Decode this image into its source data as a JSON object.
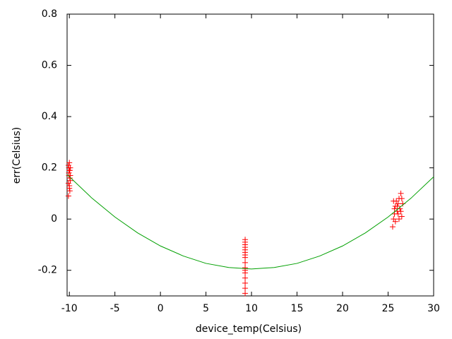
{
  "chart_data": {
    "type": "scatter",
    "x_label": "device_temp(Celsius)",
    "y_label": "err(Celsius)",
    "xlim": [
      -10.25,
      30
    ],
    "ylim": [
      -0.3,
      0.8
    ],
    "xticks": [
      -10,
      -5,
      0,
      5,
      10,
      15,
      20,
      25,
      30
    ],
    "yticks": [
      -0.2,
      0,
      0.2,
      0.4,
      0.6,
      0.8
    ],
    "series": [
      {
        "type": "scatter",
        "color": "#ff0000",
        "x": [
          -10.1,
          -10.0,
          -9.9,
          -10.05,
          -9.95,
          -10.1,
          -10.0,
          -9.9,
          -10.05,
          -9.95,
          -10.1,
          -10.0,
          -9.9,
          -10.0,
          -9.95,
          -10.05,
          9.3,
          9.3,
          9.3,
          9.3,
          9.3,
          9.3,
          9.3,
          9.3,
          9.3,
          9.3,
          9.3,
          9.3,
          9.3,
          9.3,
          9.3,
          9.3,
          25.5,
          25.6,
          25.7,
          25.8,
          25.9,
          26.0,
          26.1,
          26.2,
          26.3,
          26.4,
          26.5,
          26.6,
          25.6,
          25.8,
          26.0,
          26.2,
          26.4,
          25.7,
          26.1,
          26.5
        ],
        "values": [
          0.09,
          0.12,
          0.15,
          0.17,
          0.19,
          0.21,
          0.22,
          0.2,
          0.18,
          0.16,
          0.14,
          0.13,
          0.17,
          0.19,
          0.11,
          0.2,
          -0.29,
          -0.27,
          -0.25,
          -0.23,
          -0.21,
          -0.19,
          -0.17,
          -0.15,
          -0.14,
          -0.13,
          -0.12,
          -0.11,
          -0.1,
          -0.09,
          -0.08,
          -0.2,
          -0.03,
          0.0,
          0.02,
          0.05,
          0.07,
          0.03,
          0.06,
          0.08,
          0.04,
          0.1,
          0.01,
          0.06,
          0.07,
          -0.01,
          0.05,
          0.0,
          0.03,
          0.04,
          0.02,
          0.08
        ]
      },
      {
        "type": "line",
        "color": "#00a000",
        "x": [
          -10.25,
          -7.5,
          -5,
          -2.5,
          0,
          2.5,
          5,
          7.5,
          10,
          12.5,
          15,
          17.5,
          20,
          22.5,
          25,
          27.5,
          30
        ],
        "values": [
          0.174,
          0.081,
          0.008,
          -0.054,
          -0.105,
          -0.144,
          -0.173,
          -0.189,
          -0.195,
          -0.189,
          -0.173,
          -0.144,
          -0.105,
          -0.054,
          0.008,
          0.081,
          0.165
        ]
      }
    ]
  }
}
